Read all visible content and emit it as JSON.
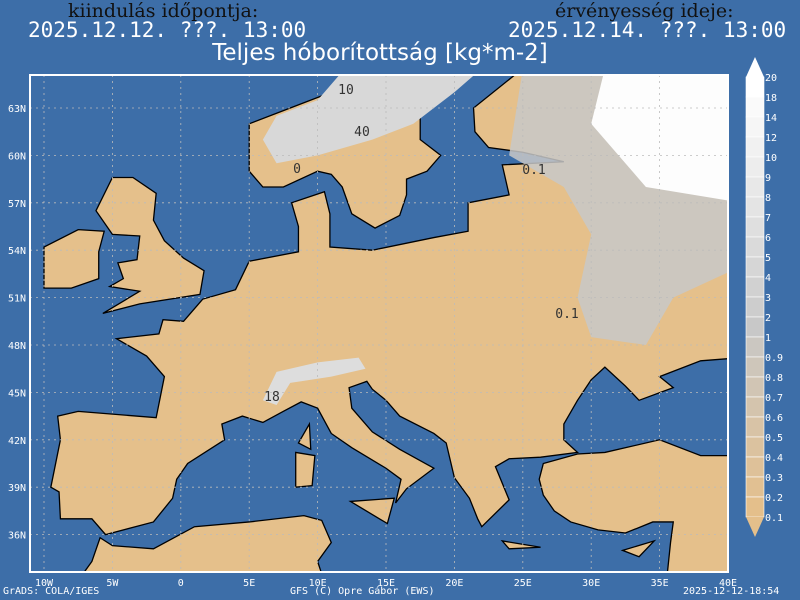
{
  "header": {
    "init_label": "kiindulás időpontja:",
    "init_time": "2025.12.12. ???. 13:00",
    "valid_label": "érvényesség ideje:",
    "valid_time": "2025.12.14. ???. 13:00",
    "title": "Teljes hóborítottság [kg*m-2]"
  },
  "map": {
    "lat_labels": [
      "63N",
      "60N",
      "57N",
      "54N",
      "51N",
      "48N",
      "45N",
      "42N",
      "39N",
      "36N"
    ],
    "lon_labels": [
      "10W",
      "5W",
      "0",
      "5E",
      "10E",
      "15E",
      "20E",
      "25E",
      "30E",
      "35E",
      "40E"
    ],
    "contour_labels": [
      "40",
      "10",
      "0",
      "0.1",
      "0.1",
      "18"
    ],
    "colors": {
      "ocean": "#3d6ea8",
      "land": "#e5c08b",
      "snow_low": "#c8c8c8",
      "snow_high": "#fdfdfd",
      "border": "#000000"
    }
  },
  "colorbar": {
    "labels": [
      "20",
      "18",
      "14",
      "12",
      "10",
      "9",
      "8",
      "7",
      "6",
      "5",
      "4",
      "3",
      "2",
      "1",
      "0.9",
      "0.8",
      "0.7",
      "0.6",
      "0.5",
      "0.4",
      "0.3",
      "0.2",
      "0.1"
    ],
    "color_top": "#ffffff",
    "color_mid": "#c8c8c8",
    "color_bottom": "#e4bf8b"
  },
  "footer": {
    "left": "GrADS: COLA/IGES",
    "center": "GFS (C) Opre Gábor (EWS)",
    "right": "2025-12-12-18:54"
  }
}
